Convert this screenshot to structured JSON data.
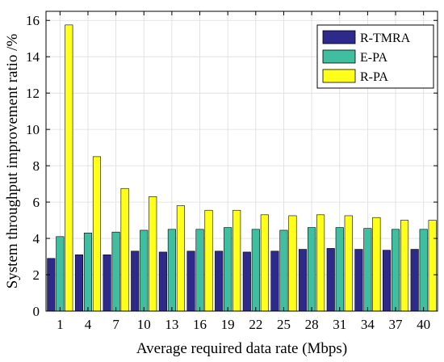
{
  "chart_data": {
    "type": "bar",
    "title": "",
    "xlabel": "Average required data rate (Mbps)",
    "ylabel": "System throughput improvement ratio /%",
    "categories": [
      "1",
      "4",
      "7",
      "10",
      "13",
      "16",
      "19",
      "22",
      "25",
      "28",
      "31",
      "34",
      "37",
      "40"
    ],
    "ylim": [
      0,
      16.5
    ],
    "yticks": [
      0,
      2,
      4,
      6,
      8,
      10,
      12,
      14,
      16
    ],
    "grid": true,
    "legend_position": "top-right",
    "series": [
      {
        "name": "R-TMRA",
        "color": "#2e2a8c",
        "values": [
          2.9,
          3.1,
          3.1,
          3.3,
          3.25,
          3.3,
          3.3,
          3.25,
          3.3,
          3.4,
          3.45,
          3.4,
          3.35,
          3.4
        ]
      },
      {
        "name": "E-PA",
        "color": "#3fbf9f",
        "values": [
          4.1,
          4.3,
          4.35,
          4.45,
          4.5,
          4.5,
          4.6,
          4.5,
          4.45,
          4.6,
          4.6,
          4.55,
          4.5,
          4.5
        ]
      },
      {
        "name": "R-PA",
        "color": "#ffff1a",
        "values": [
          15.75,
          8.5,
          6.75,
          6.3,
          5.8,
          5.55,
          5.55,
          5.3,
          5.25,
          5.3,
          5.25,
          5.15,
          5.0,
          5.0
        ]
      }
    ]
  }
}
